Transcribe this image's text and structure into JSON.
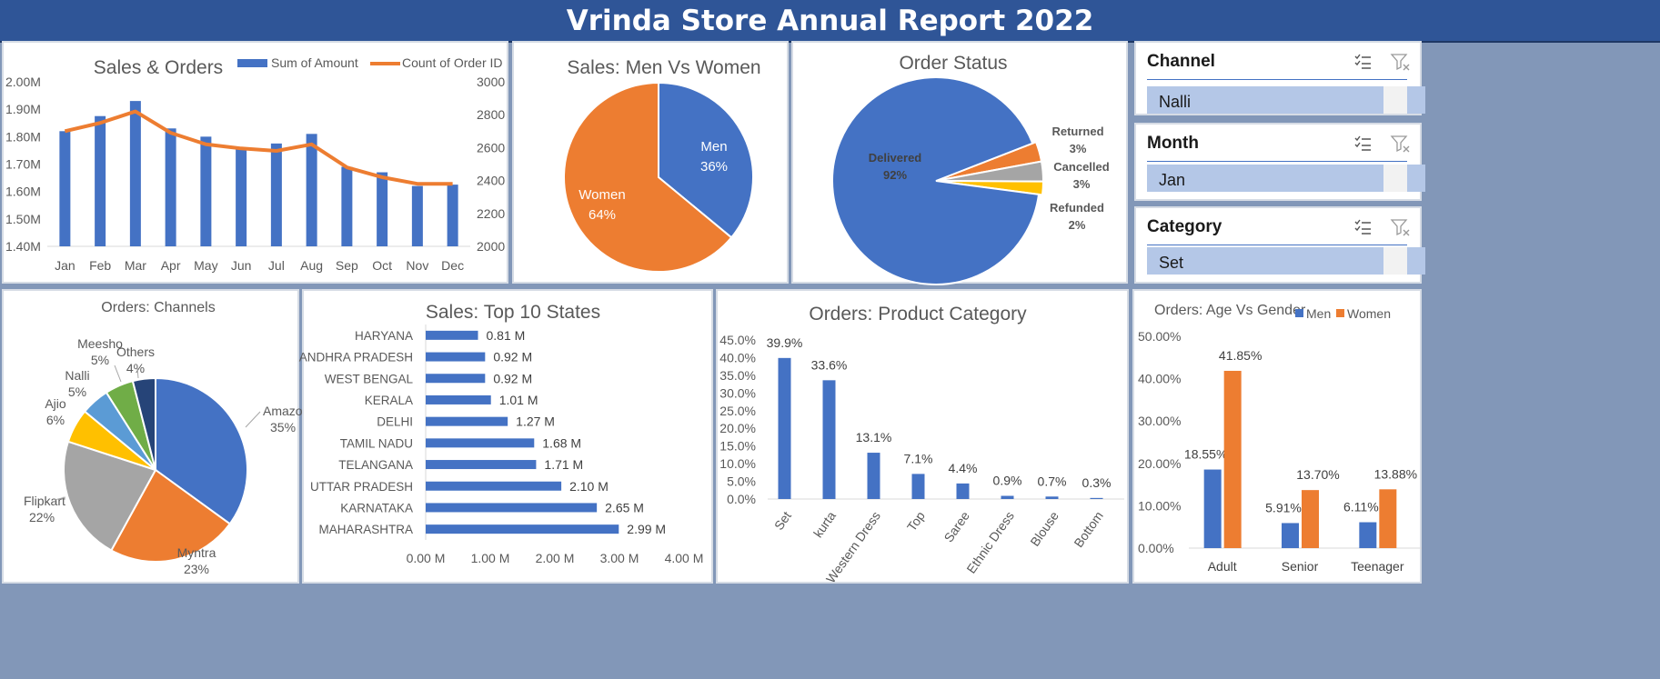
{
  "header": {
    "title": "Vrinda Store Annual Report 2022"
  },
  "slicers": [
    {
      "title": "Channel",
      "value": "Nalli"
    },
    {
      "title": "Month",
      "value": "Jan"
    },
    {
      "title": "Category",
      "value": "Set"
    }
  ],
  "chart_data": [
    {
      "type": "bar",
      "title": "Sales & Orders",
      "categories": [
        "Jan",
        "Feb",
        "Mar",
        "Apr",
        "May",
        "Jun",
        "Jul",
        "Aug",
        "Sep",
        "Oct",
        "Nov",
        "Dec"
      ],
      "series": [
        {
          "name": "Sum of Amount",
          "type": "bar",
          "axis": "left",
          "color": "#4472c4",
          "values": [
            1.82,
            1.875,
            1.93,
            1.83,
            1.8,
            1.755,
            1.775,
            1.81,
            1.69,
            1.67,
            1.62,
            1.625
          ]
        },
        {
          "name": "Count of Order ID",
          "type": "line",
          "axis": "right",
          "color": "#ed7d31",
          "values": [
            2700,
            2750,
            2820,
            2690,
            2620,
            2595,
            2580,
            2620,
            2480,
            2420,
            2380,
            2380
          ]
        }
      ],
      "y_left": {
        "ticks": [
          "2.00M",
          "1.90M",
          "1.80M",
          "1.70M",
          "1.60M",
          "1.50M",
          "1.40M"
        ],
        "min": 1.4,
        "max": 2.0
      },
      "y_right": {
        "ticks": [
          "3000",
          "2800",
          "2600",
          "2400",
          "2200",
          "2000"
        ],
        "min": 2000,
        "max": 3000
      }
    },
    {
      "type": "pie",
      "title": "Sales: Men Vs Women",
      "slices": [
        {
          "label": "Men",
          "pct_label": "36%",
          "value": 36,
          "color": "#4472c4"
        },
        {
          "label": "Women",
          "pct_label": "64%",
          "value": 64,
          "color": "#ed7d31"
        }
      ]
    },
    {
      "type": "pie",
      "title": "Order Status",
      "slices": [
        {
          "label": "Returned",
          "pct_label": "3%",
          "value": 3,
          "color": "#ed7d31"
        },
        {
          "label": "Cancelled",
          "pct_label": "3%",
          "value": 3,
          "color": "#a5a5a5"
        },
        {
          "label": "Refunded",
          "pct_label": "2%",
          "value": 2,
          "color": "#ffc000"
        },
        {
          "label": "Delivered",
          "pct_label": "92%",
          "value": 92,
          "color": "#4472c4"
        }
      ]
    },
    {
      "type": "pie",
      "title": "Orders: Channels",
      "slices": [
        {
          "label": "Amazon",
          "pct_label": "35%",
          "value": 35,
          "color": "#4472c4"
        },
        {
          "label": "Myntra",
          "pct_label": "23%",
          "value": 23,
          "color": "#ed7d31"
        },
        {
          "label": "Flipkart",
          "pct_label": "22%",
          "value": 22,
          "color": "#a5a5a5"
        },
        {
          "label": "Ajio",
          "pct_label": "6%",
          "value": 6,
          "color": "#ffc000"
        },
        {
          "label": "Nalli",
          "pct_label": "5%",
          "value": 5,
          "color": "#5b9bd5"
        },
        {
          "label": "Meesho",
          "pct_label": "5%",
          "value": 5,
          "color": "#70ad47"
        },
        {
          "label": "Others",
          "pct_label": "4%",
          "value": 4,
          "color": "#264478"
        }
      ]
    },
    {
      "type": "bar",
      "orientation": "horizontal",
      "title": "Sales: Top 10 States",
      "categories": [
        "HARYANA",
        "ANDHRA PRADESH",
        "WEST BENGAL",
        "KERALA",
        "DELHI",
        "TAMIL NADU",
        "TELANGANA",
        "UTTAR PRADESH",
        "KARNATAKA",
        "MAHARASHTRA"
      ],
      "values": [
        0.81,
        0.92,
        0.92,
        1.01,
        1.27,
        1.68,
        1.71,
        2.1,
        2.65,
        2.99
      ],
      "labels": [
        "0.81 M",
        "0.92 M",
        "0.92 M",
        "1.01 M",
        "1.27 M",
        "1.68 M",
        "1.71 M",
        "2.10 M",
        "2.65 M",
        "2.99 M"
      ],
      "x_ticks": [
        "0.00 M",
        "1.00 M",
        "2.00 M",
        "3.00 M",
        "4.00 M"
      ],
      "xlim": [
        0,
        4
      ],
      "color": "#4472c4"
    },
    {
      "type": "bar",
      "title": "Orders: Product Category",
      "categories": [
        "Set",
        "kurta",
        "Western Dress",
        "Top",
        "Saree",
        "Ethnic Dress",
        "Blouse",
        "Bottom"
      ],
      "values": [
        39.9,
        33.6,
        13.1,
        7.1,
        4.4,
        0.9,
        0.7,
        0.3
      ],
      "labels": [
        "39.9%",
        "33.6%",
        "13.1%",
        "7.1%",
        "4.4%",
        "0.9%",
        "0.7%",
        "0.3%"
      ],
      "y_ticks": [
        "45.0%",
        "40.0%",
        "35.0%",
        "30.0%",
        "25.0%",
        "20.0%",
        "15.0%",
        "10.0%",
        "5.0%",
        "0.0%"
      ],
      "ylim": [
        0,
        45
      ],
      "color": "#4472c4"
    },
    {
      "type": "bar",
      "title": "Orders: Age Vs Gender",
      "categories": [
        "Adult",
        "Senior",
        "Teenager"
      ],
      "series": [
        {
          "name": "Men",
          "color": "#4472c4",
          "values": [
            18.55,
            5.91,
            6.11
          ],
          "labels": [
            "18.55%",
            "5.91%",
            "6.11%"
          ]
        },
        {
          "name": "Women",
          "color": "#ed7d31",
          "values": [
            41.85,
            13.7,
            13.88
          ],
          "labels": [
            "41.85%",
            "13.70%",
            "13.88%"
          ]
        }
      ],
      "y_ticks": [
        "50.00%",
        "40.00%",
        "30.00%",
        "20.00%",
        "10.00%",
        "0.00%"
      ],
      "ylim": [
        0,
        50
      ]
    }
  ]
}
